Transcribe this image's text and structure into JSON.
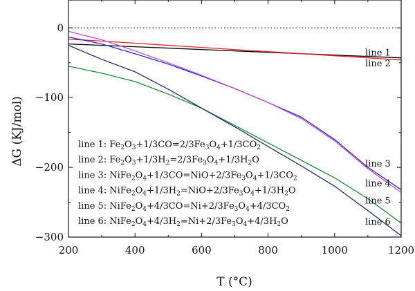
{
  "chart_data": {
    "type": "line",
    "xlabel": "T (°C)",
    "ylabel": "ΔG (KJ/mol)",
    "xlim": [
      200,
      1200
    ],
    "ylim": [
      -300,
      40
    ],
    "xticks": [
      200,
      400,
      600,
      800,
      1000,
      1200
    ],
    "xtick_labels": [
      "200",
      "400",
      "600",
      "800",
      "1000",
      "1200"
    ],
    "yticks": [
      0,
      -100,
      -200,
      -300
    ],
    "ytick_labels": [
      "0",
      "−100",
      "−200",
      "−300"
    ],
    "zero_line": "dotted",
    "grid": false,
    "series": [
      {
        "name": "line 1",
        "color": "#000000",
        "x": [
          200,
          400,
          600,
          800,
          1000,
          1200
        ],
        "y": [
          -23,
          -27,
          -31,
          -35,
          -39,
          -43
        ]
      },
      {
        "name": "line 2",
        "color": "#e8202a",
        "x": [
          200,
          400,
          600,
          800,
          1000,
          1200
        ],
        "y": [
          -16,
          -22,
          -28,
          -34,
          -40,
          -46
        ]
      },
      {
        "name": "line 3",
        "color": "#2b2bd6",
        "x": [
          200,
          300,
          400,
          500,
          600,
          700,
          800,
          900,
          1000,
          1100,
          1200
        ],
        "y": [
          -13,
          -23,
          -37,
          -52,
          -69,
          -87,
          -107,
          -128,
          -160,
          -200,
          -232
        ]
      },
      {
        "name": "line 4",
        "color": "#c44cc4",
        "x": [
          200,
          300,
          400,
          500,
          600,
          700,
          800,
          900,
          1000,
          1100,
          1200
        ],
        "y": [
          -5,
          -17,
          -33,
          -50,
          -68,
          -87,
          -107,
          -130,
          -162,
          -202,
          -236
        ]
      },
      {
        "name": "line 5",
        "color": "#1a8a3a",
        "x": [
          200,
          300,
          400,
          500,
          600,
          700,
          800,
          900,
          1000,
          1100,
          1200
        ],
        "y": [
          -55,
          -65,
          -77,
          -95,
          -115,
          -140,
          -165,
          -190,
          -215,
          -245,
          -280
        ]
      },
      {
        "name": "line 6",
        "color": "#1f2a6e",
        "x": [
          200,
          300,
          400,
          500,
          600,
          700,
          800,
          900,
          1000,
          1100,
          1200
        ],
        "y": [
          -25,
          -45,
          -63,
          -88,
          -115,
          -142,
          -170,
          -198,
          -227,
          -262,
          -298
        ]
      }
    ],
    "end_labels": [
      {
        "text": "line 1",
        "y": -36
      },
      {
        "text": "line 2",
        "y": -51
      },
      {
        "text": "line 3",
        "y": -195
      },
      {
        "text": "line 4",
        "y": -223
      },
      {
        "text": "line 5",
        "y": -248
      },
      {
        "text": "line 6",
        "y": -278
      }
    ],
    "legend": {
      "placement": "bottom-left",
      "entries": [
        {
          "label": "line 1: ",
          "formula": [
            [
              "Fe",
              ""
            ],
            [
              "2",
              "sub"
            ],
            [
              "O",
              ""
            ],
            [
              "3",
              "sub"
            ],
            [
              "+1/3CO=2/3Fe",
              ""
            ],
            [
              "3",
              "sub"
            ],
            [
              "O",
              ""
            ],
            [
              "4",
              "sub"
            ],
            [
              "+1/3CO",
              ""
            ],
            [
              "2",
              "sub"
            ]
          ]
        },
        {
          "label": "line 2: ",
          "formula": [
            [
              "Fe",
              ""
            ],
            [
              "2",
              "sub"
            ],
            [
              "O",
              ""
            ],
            [
              "3",
              "sub"
            ],
            [
              "+1/3H",
              ""
            ],
            [
              "2",
              "sub"
            ],
            [
              "=2/3Fe",
              ""
            ],
            [
              "3",
              "sub"
            ],
            [
              "O",
              ""
            ],
            [
              "4",
              "sub"
            ],
            [
              "+1/3H",
              ""
            ],
            [
              "2",
              "sub"
            ],
            [
              "O",
              ""
            ]
          ]
        },
        {
          "label": "line 3: ",
          "formula": [
            [
              "NiFe",
              ""
            ],
            [
              "2",
              "sub"
            ],
            [
              "O",
              ""
            ],
            [
              "4",
              "sub"
            ],
            [
              "+1/3CO=NiO+2/3Fe",
              ""
            ],
            [
              "3",
              "sub"
            ],
            [
              "O",
              ""
            ],
            [
              "4",
              "sub"
            ],
            [
              "+1/3CO",
              ""
            ],
            [
              "2",
              "sub"
            ]
          ]
        },
        {
          "label": "line 4: ",
          "formula": [
            [
              "NiFe",
              ""
            ],
            [
              "2",
              "sub"
            ],
            [
              "O",
              ""
            ],
            [
              "4",
              "sub"
            ],
            [
              "+1/3H",
              ""
            ],
            [
              "2",
              "sub"
            ],
            [
              "=NiO+2/3Fe",
              ""
            ],
            [
              "3",
              "sub"
            ],
            [
              "O",
              ""
            ],
            [
              "4",
              "sub"
            ],
            [
              "+1/3H",
              ""
            ],
            [
              "2",
              "sub"
            ],
            [
              "O",
              ""
            ]
          ]
        },
        {
          "label": "line 5: ",
          "formula": [
            [
              "NiFe",
              ""
            ],
            [
              "2",
              "sub"
            ],
            [
              "O",
              ""
            ],
            [
              "4",
              "sub"
            ],
            [
              "+4/3CO=Ni+2/3Fe",
              ""
            ],
            [
              "3",
              "sub"
            ],
            [
              "O",
              ""
            ],
            [
              "4",
              "sub"
            ],
            [
              "+4/3CO",
              ""
            ],
            [
              "2",
              "sub"
            ]
          ]
        },
        {
          "label": "line 6: ",
          "formula": [
            [
              "NiFe",
              ""
            ],
            [
              "2",
              "sub"
            ],
            [
              "O",
              ""
            ],
            [
              "4",
              "sub"
            ],
            [
              "+4/3H",
              ""
            ],
            [
              "2",
              "sub"
            ],
            [
              "=Ni+2/3Fe",
              ""
            ],
            [
              "3",
              "sub"
            ],
            [
              "O",
              ""
            ],
            [
              "4",
              "sub"
            ],
            [
              "+4/3H",
              ""
            ],
            [
              "2",
              "sub"
            ],
            [
              "O",
              ""
            ]
          ]
        }
      ]
    }
  }
}
